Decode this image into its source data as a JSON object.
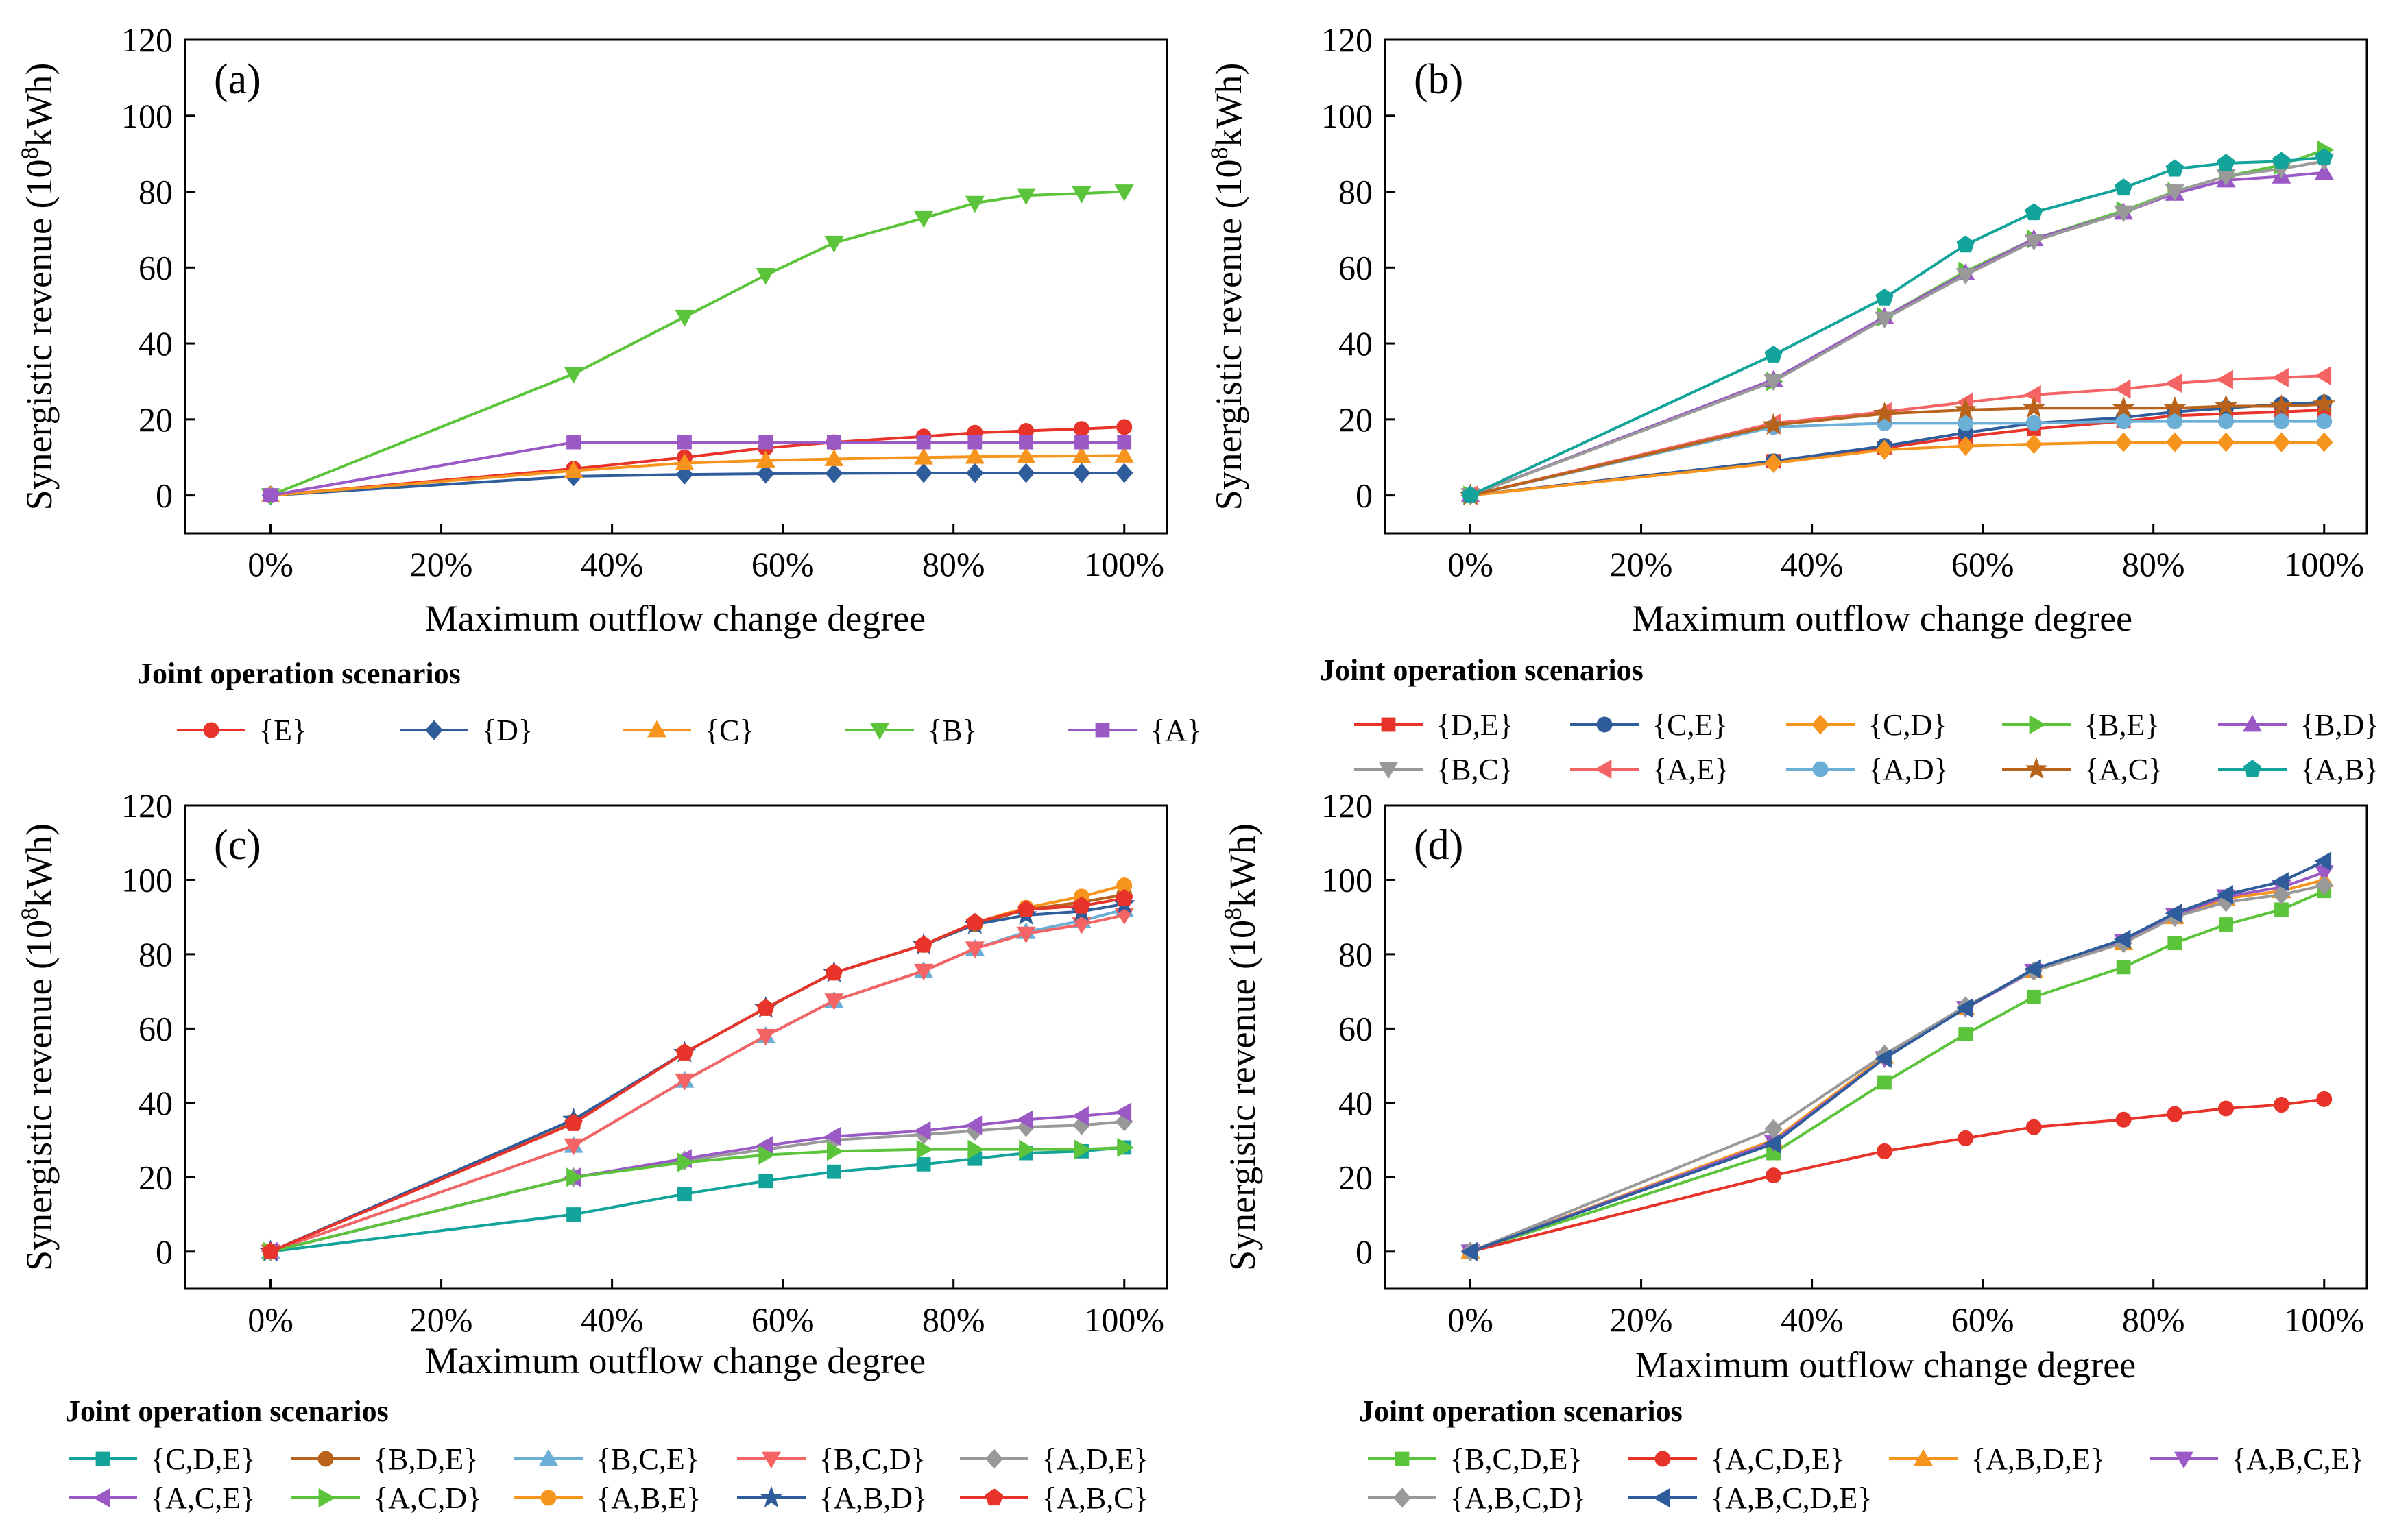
{
  "chart_data": [
    {
      "type": "line",
      "panel_label": "(a)",
      "xlabel": "Maximum outflow change degree",
      "ylabel_main": "Synergistic revenue (10",
      "ylabel_sup": "8",
      "ylabel_tail": "kWh)",
      "x": [
        0,
        35.5,
        48.5,
        58,
        66,
        76.5,
        82.5,
        88.5,
        95,
        100
      ],
      "xticks": [
        0,
        20,
        40,
        60,
        80,
        100
      ],
      "xtick_labels": [
        "0%",
        "20%",
        "40%",
        "60%",
        "80%",
        "100%"
      ],
      "yticks": [
        0,
        20,
        40,
        60,
        80,
        100,
        120
      ],
      "ylim": [
        -10,
        120
      ],
      "legend_title": "Joint operation scenarios",
      "legend_cols": 5,
      "series": [
        {
          "name": "{E}",
          "color": "#E8332A",
          "marker": "circle",
          "values": [
            0,
            7,
            10,
            12.5,
            14,
            15.5,
            16.5,
            17,
            17.5,
            18
          ]
        },
        {
          "name": "{D}",
          "color": "#2F5C9A",
          "marker": "diamond",
          "values": [
            0,
            5,
            5.5,
            5.7,
            5.8,
            5.9,
            5.9,
            5.9,
            5.9,
            5.9
          ]
        },
        {
          "name": "{C}",
          "color": "#F7941D",
          "marker": "triangle",
          "values": [
            0,
            6.5,
            8.5,
            9.2,
            9.6,
            10,
            10.2,
            10.3,
            10.4,
            10.5
          ]
        },
        {
          "name": "{B}",
          "color": "#5CC43A",
          "marker": "tridown",
          "values": [
            0,
            32,
            47,
            58,
            66.5,
            73,
            77,
            79,
            79.5,
            80
          ]
        },
        {
          "name": "{A}",
          "color": "#9B59C6",
          "marker": "square",
          "values": [
            0,
            14,
            14,
            14,
            14,
            14,
            14,
            14,
            14,
            14
          ]
        }
      ]
    },
    {
      "type": "line",
      "panel_label": "(b)",
      "xlabel": "Maximum outflow change degree",
      "ylabel_main": "Synergistic revenue (10",
      "ylabel_sup": "8",
      "ylabel_tail": "kWh)",
      "x": [
        0,
        35.5,
        48.5,
        58,
        66,
        76.5,
        82.5,
        88.5,
        95,
        100
      ],
      "xticks": [
        0,
        20,
        40,
        60,
        80,
        100
      ],
      "xtick_labels": [
        "0%",
        "20%",
        "40%",
        "60%",
        "80%",
        "100%"
      ],
      "yticks": [
        0,
        20,
        40,
        60,
        80,
        100,
        120
      ],
      "ylim": [
        -10,
        120
      ],
      "legend_title": "Joint operation scenarios",
      "legend_cols": 5,
      "series": [
        {
          "name": "{D,E}",
          "color": "#E8332A",
          "marker": "square",
          "values": [
            0,
            9,
            12.5,
            15.5,
            17.5,
            19.5,
            21,
            21.5,
            22,
            22.5
          ]
        },
        {
          "name": "{C,E}",
          "color": "#2F5C9A",
          "marker": "circle",
          "values": [
            0,
            9,
            13,
            16.5,
            19,
            20.5,
            22,
            23,
            24,
            24.5
          ]
        },
        {
          "name": "{C,D}",
          "color": "#F7941D",
          "marker": "diamond",
          "values": [
            0,
            8.5,
            12,
            13,
            13.5,
            14,
            14,
            14,
            14,
            14
          ]
        },
        {
          "name": "{B,E}",
          "color": "#5CC43A",
          "marker": "triright",
          "values": [
            0,
            30,
            47,
            59,
            67.5,
            75,
            80,
            84,
            87,
            91
          ]
        },
        {
          "name": "{B,D}",
          "color": "#9B59C6",
          "marker": "triangle",
          "values": [
            0,
            30.5,
            47,
            58.5,
            67.5,
            74.5,
            79.5,
            83,
            84,
            85
          ]
        },
        {
          "name": "{B,C}",
          "color": "#999999",
          "marker": "tridown",
          "values": [
            0,
            30,
            46.5,
            58,
            67,
            74.5,
            80,
            84,
            86,
            88
          ]
        },
        {
          "name": "{A,E}",
          "color": "#F46464",
          "marker": "trileft",
          "values": [
            0,
            19,
            22,
            24.5,
            26.5,
            28,
            29.5,
            30.5,
            31,
            31.5
          ]
        },
        {
          "name": "{A,D}",
          "color": "#6BAED6",
          "marker": "circle",
          "values": [
            0,
            18,
            19,
            19,
            19,
            19.5,
            19.5,
            19.5,
            19.5,
            19.5
          ]
        },
        {
          "name": "{A,C}",
          "color": "#B8621B",
          "marker": "star",
          "values": [
            0,
            18.5,
            21.5,
            22.5,
            23,
            23,
            23,
            23.5,
            23.5,
            24
          ]
        },
        {
          "name": "{A,B}",
          "color": "#12A39A",
          "marker": "pentagon",
          "values": [
            0,
            37,
            52,
            66,
            74.5,
            81,
            86,
            87.5,
            88,
            89
          ]
        }
      ]
    },
    {
      "type": "line",
      "panel_label": "(c)",
      "xlabel": "Maximum outflow change degree",
      "ylabel_main": "Synergistic revenue (10",
      "ylabel_sup": "8",
      "ylabel_tail": "kWh)",
      "x": [
        0,
        35.5,
        48.5,
        58,
        66,
        76.5,
        82.5,
        88.5,
        95,
        100
      ],
      "xticks": [
        0,
        20,
        40,
        60,
        80,
        100
      ],
      "xtick_labels": [
        "0%",
        "20%",
        "40%",
        "60%",
        "80%",
        "100%"
      ],
      "yticks": [
        0,
        20,
        40,
        60,
        80,
        100,
        120
      ],
      "ylim": [
        -10,
        120
      ],
      "legend_title": "Joint operation scenarios",
      "legend_cols": 5,
      "series": [
        {
          "name": "{C,D,E}",
          "color": "#12A39A",
          "marker": "square",
          "values": [
            0,
            10,
            15.5,
            19,
            21.5,
            23.5,
            25,
            26.5,
            27,
            28
          ]
        },
        {
          "name": "{B,D,E}",
          "color": "#B8621B",
          "marker": "circle",
          "values": [
            0,
            35,
            53.5,
            65.5,
            75,
            82.5,
            88,
            92,
            94,
            96
          ]
        },
        {
          "name": "{B,C,E}",
          "color": "#6BAED6",
          "marker": "triangle",
          "values": [
            0,
            28.5,
            46,
            58,
            67.5,
            75.5,
            81.5,
            86,
            89,
            92
          ]
        },
        {
          "name": "{B,C,D}",
          "color": "#F46464",
          "marker": "tridown",
          "values": [
            0,
            28.5,
            46,
            58,
            67.5,
            75.5,
            81.5,
            85.5,
            88,
            90.5
          ]
        },
        {
          "name": "{A,D,E}",
          "color": "#999999",
          "marker": "diamond",
          "values": [
            0,
            20,
            24.5,
            27.5,
            30,
            31.5,
            32.5,
            33.5,
            34,
            35
          ]
        },
        {
          "name": "{A,C,E}",
          "color": "#9B59C6",
          "marker": "trileft",
          "values": [
            0,
            20,
            25,
            28.5,
            31,
            32.5,
            34,
            35.5,
            36.5,
            37.5
          ]
        },
        {
          "name": "{A,C,D}",
          "color": "#5CC43A",
          "marker": "triright",
          "values": [
            0,
            20,
            24,
            26,
            27,
            27.5,
            27.5,
            27.5,
            27.5,
            28
          ]
        },
        {
          "name": "{A,B,E}",
          "color": "#F7941D",
          "marker": "circle",
          "values": [
            0,
            35,
            53.5,
            65.5,
            75,
            82.5,
            88.5,
            92.5,
            95.5,
            98.5
          ]
        },
        {
          "name": "{A,B,D}",
          "color": "#2F5C9A",
          "marker": "star",
          "values": [
            0,
            35.5,
            53.5,
            65.5,
            75,
            82.5,
            88,
            90.5,
            91.5,
            93.5
          ]
        },
        {
          "name": "{A,B,C}",
          "color": "#E8332A",
          "marker": "pentagon",
          "values": [
            0,
            34.5,
            53.5,
            65.5,
            75,
            82.5,
            88.5,
            92,
            93,
            95
          ]
        }
      ]
    },
    {
      "type": "line",
      "panel_label": "(d)",
      "xlabel": "Maximum outflow change degree",
      "ylabel_main": "Synergistic revenue (10",
      "ylabel_sup": "8",
      "ylabel_tail": "kWh)",
      "x": [
        0,
        35.5,
        48.5,
        58,
        66,
        76.5,
        82.5,
        88.5,
        95,
        100
      ],
      "xticks": [
        0,
        20,
        40,
        60,
        80,
        100
      ],
      "xtick_labels": [
        "0%",
        "20%",
        "40%",
        "60%",
        "80%",
        "100%"
      ],
      "yticks": [
        0,
        20,
        40,
        60,
        80,
        100,
        120
      ],
      "ylim": [
        -10,
        120
      ],
      "legend_title": "Joint operation scenarios",
      "legend_cols": 4,
      "series": [
        {
          "name": "{B,C,D,E}",
          "color": "#5CC43A",
          "marker": "square",
          "values": [
            0,
            26.5,
            45.5,
            58.5,
            68.5,
            76.5,
            83,
            88,
            92,
            97
          ]
        },
        {
          "name": "{A,C,D,E}",
          "color": "#E8332A",
          "marker": "circle",
          "values": [
            0,
            20.5,
            27,
            30.5,
            33.5,
            35.5,
            37,
            38.5,
            39.5,
            41
          ]
        },
        {
          "name": "{A,B,D,E}",
          "color": "#F7941D",
          "marker": "triangle",
          "values": [
            0,
            30,
            52.5,
            65.5,
            75.5,
            83,
            90,
            95,
            97,
            100
          ]
        },
        {
          "name": "{A,B,C,E}",
          "color": "#9B59C6",
          "marker": "tridown",
          "values": [
            0,
            29.5,
            52,
            65.5,
            75.5,
            83.5,
            90.5,
            95.5,
            98,
            102
          ]
        },
        {
          "name": "{A,B,C,D}",
          "color": "#999999",
          "marker": "diamond",
          "values": [
            0,
            33,
            53,
            66,
            75.5,
            83,
            90,
            94,
            96,
            98.5
          ]
        },
        {
          "name": "{A,B,C,D,E}",
          "color": "#2F5C9A",
          "marker": "trileft",
          "values": [
            0,
            29,
            52,
            65.5,
            76,
            84,
            91,
            96,
            99.5,
            105
          ]
        }
      ]
    }
  ]
}
